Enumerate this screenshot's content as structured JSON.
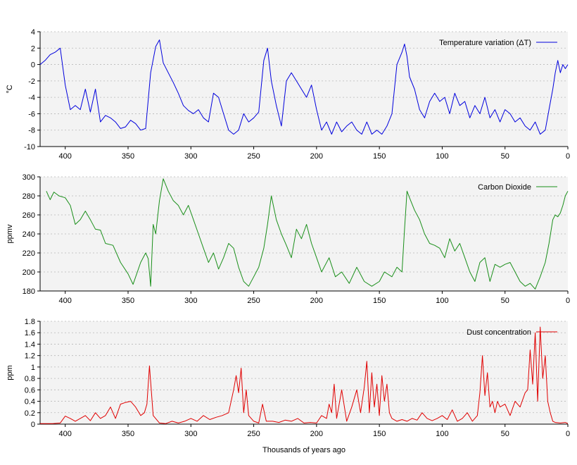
{
  "chart_data": [
    {
      "type": "line",
      "panel": "temperature",
      "ylabel": "°C",
      "xlabel": "",
      "xlim": [
        420,
        0
      ],
      "ylim": [
        -10,
        4
      ],
      "yticks": [
        4,
        2,
        0,
        -2,
        -4,
        -6,
        -8,
        -10
      ],
      "xticks": [
        400,
        350,
        300,
        250,
        200,
        150,
        100,
        50,
        0
      ],
      "grid": true,
      "legend_position": "top-right",
      "series": [
        {
          "name": "Temperature variation (ΔT)",
          "color": "#0000dd",
          "x": [
            420,
            416,
            412,
            408,
            404,
            400,
            396,
            392,
            388,
            384,
            380,
            376,
            372,
            368,
            364,
            360,
            356,
            352,
            348,
            344,
            340,
            336,
            332,
            328,
            325,
            322,
            318,
            314,
            310,
            306,
            302,
            298,
            294,
            290,
            286,
            282,
            278,
            274,
            270,
            266,
            262,
            258,
            254,
            250,
            246,
            242,
            239,
            236,
            232,
            228,
            224,
            220,
            216,
            212,
            208,
            204,
            200,
            196,
            192,
            188,
            184,
            180,
            176,
            172,
            168,
            164,
            160,
            156,
            152,
            148,
            144,
            140,
            136,
            132,
            130,
            128,
            126,
            122,
            118,
            114,
            110,
            106,
            102,
            98,
            94,
            90,
            86,
            82,
            78,
            74,
            70,
            66,
            62,
            58,
            54,
            50,
            46,
            42,
            38,
            34,
            30,
            26,
            22,
            18,
            15,
            12,
            10,
            8,
            6,
            4,
            2,
            0
          ],
          "y": [
            0,
            0.5,
            1.2,
            1.5,
            2.0,
            -2.5,
            -5.5,
            -5.0,
            -5.5,
            -3.0,
            -5.8,
            -3.0,
            -7.0,
            -6.2,
            -6.5,
            -7.0,
            -7.8,
            -7.6,
            -6.8,
            -7.2,
            -8.0,
            -7.8,
            -1.0,
            2.2,
            3.0,
            0.2,
            -1.0,
            -2.2,
            -3.5,
            -5.0,
            -5.6,
            -6.0,
            -5.5,
            -6.5,
            -7.0,
            -3.5,
            -4.0,
            -6.0,
            -8.0,
            -8.5,
            -8.0,
            -6.0,
            -7.0,
            -6.5,
            -5.8,
            0.5,
            2.0,
            -2.0,
            -5.0,
            -7.5,
            -2.0,
            -1.0,
            -2.0,
            -3.0,
            -4.0,
            -2.5,
            -5.5,
            -8.0,
            -7.0,
            -8.5,
            -7.0,
            -8.2,
            -7.5,
            -7.0,
            -8.0,
            -8.5,
            -7.0,
            -8.5,
            -8.0,
            -8.5,
            -7.5,
            -6.0,
            0.0,
            1.5,
            2.5,
            1.0,
            -1.5,
            -3.0,
            -5.5,
            -6.5,
            -4.5,
            -3.5,
            -4.5,
            -4.0,
            -6.0,
            -3.5,
            -5.0,
            -4.5,
            -6.5,
            -5.0,
            -6.0,
            -4.0,
            -6.5,
            -5.5,
            -7.0,
            -5.5,
            -6.0,
            -7.0,
            -6.5,
            -7.5,
            -8.0,
            -7.0,
            -8.5,
            -8.0,
            -5.5,
            -3.0,
            -1.0,
            0.5,
            -1.0,
            0.0,
            -0.5,
            0.0
          ]
        }
      ]
    },
    {
      "type": "line",
      "panel": "co2",
      "ylabel": "ppmv",
      "xlabel": "",
      "xlim": [
        420,
        0
      ],
      "ylim": [
        180,
        300
      ],
      "yticks": [
        300,
        280,
        260,
        240,
        220,
        200,
        180
      ],
      "xticks": [
        400,
        350,
        300,
        250,
        200,
        150,
        100,
        50,
        0
      ],
      "grid": true,
      "legend_position": "top-right",
      "series": [
        {
          "name": "Carbon Dioxide",
          "color": "#1a8f1a",
          "x": [
            415,
            412,
            409,
            405,
            400,
            396,
            392,
            388,
            384,
            380,
            376,
            372,
            368,
            362,
            356,
            350,
            346,
            340,
            336,
            334,
            332,
            330,
            328,
            325,
            322,
            318,
            314,
            310,
            306,
            302,
            298,
            294,
            290,
            286,
            282,
            278,
            274,
            270,
            266,
            262,
            258,
            254,
            250,
            246,
            242,
            239,
            236,
            232,
            228,
            224,
            220,
            216,
            212,
            208,
            204,
            200,
            196,
            190,
            185,
            180,
            174,
            168,
            162,
            156,
            150,
            146,
            140,
            136,
            132,
            130,
            128,
            126,
            122,
            118,
            114,
            110,
            106,
            102,
            98,
            94,
            90,
            86,
            82,
            78,
            74,
            70,
            66,
            62,
            58,
            54,
            50,
            46,
            42,
            38,
            34,
            30,
            26,
            22,
            18,
            15,
            12,
            10,
            8,
            6,
            4,
            2,
            0
          ],
          "y": [
            285,
            276,
            284,
            280,
            278,
            270,
            250,
            255,
            264,
            255,
            245,
            244,
            230,
            228,
            210,
            198,
            187,
            210,
            220,
            214,
            185,
            250,
            240,
            275,
            298,
            285,
            275,
            270,
            260,
            270,
            255,
            240,
            225,
            210,
            220,
            203,
            215,
            230,
            225,
            205,
            190,
            185,
            195,
            205,
            225,
            250,
            280,
            255,
            240,
            228,
            215,
            245,
            235,
            250,
            230,
            215,
            200,
            215,
            195,
            200,
            188,
            205,
            190,
            185,
            190,
            200,
            195,
            205,
            200,
            245,
            285,
            278,
            265,
            255,
            240,
            230,
            228,
            225,
            215,
            235,
            222,
            230,
            215,
            200,
            190,
            210,
            215,
            190,
            208,
            205,
            208,
            210,
            200,
            190,
            185,
            188,
            182,
            195,
            210,
            230,
            255,
            260,
            258,
            262,
            270,
            280,
            285
          ]
        }
      ]
    },
    {
      "type": "line",
      "panel": "dust",
      "ylabel": "ppm",
      "xlabel": "Thousands of years ago",
      "xlim": [
        420,
        0
      ],
      "ylim": [
        0,
        1.8
      ],
      "yticks": [
        1.8,
        1.6,
        1.4,
        1.2,
        1,
        0.8,
        0.6,
        0.4,
        0.2,
        0
      ],
      "xticks": [
        400,
        350,
        300,
        250,
        200,
        150,
        100,
        50,
        0
      ],
      "grid": true,
      "legend_position": "top-right",
      "series": [
        {
          "name": "Dust concentration",
          "color": "#e00000",
          "x": [
            420,
            410,
            404,
            400,
            396,
            392,
            388,
            384,
            380,
            376,
            372,
            368,
            364,
            360,
            356,
            352,
            348,
            344,
            340,
            337,
            335,
            333,
            330,
            325,
            320,
            315,
            310,
            305,
            300,
            295,
            290,
            285,
            280,
            275,
            270,
            266,
            264,
            262,
            260,
            258,
            256,
            254,
            250,
            246,
            243,
            240,
            235,
            230,
            225,
            220,
            215,
            210,
            205,
            200,
            196,
            192,
            190,
            188,
            186,
            184,
            180,
            176,
            172,
            168,
            165,
            162,
            160,
            158,
            156,
            154,
            152,
            150,
            148,
            146,
            144,
            142,
            140,
            136,
            132,
            128,
            124,
            120,
            116,
            112,
            108,
            104,
            100,
            96,
            92,
            88,
            84,
            80,
            76,
            72,
            70,
            68,
            66,
            64,
            62,
            60,
            58,
            56,
            54,
            50,
            46,
            42,
            38,
            34,
            32,
            30,
            28,
            26,
            24,
            22,
            20,
            18,
            16,
            14,
            12,
            10,
            6,
            2,
            0
          ],
          "y": [
            0.01,
            0.01,
            0.02,
            0.14,
            0.1,
            0.05,
            0.1,
            0.15,
            0.06,
            0.2,
            0.1,
            0.15,
            0.3,
            0.1,
            0.35,
            0.38,
            0.4,
            0.3,
            0.15,
            0.2,
            0.35,
            1.02,
            0.15,
            0.02,
            0.01,
            0.05,
            0.02,
            0.05,
            0.1,
            0.05,
            0.15,
            0.08,
            0.12,
            0.15,
            0.2,
            0.6,
            0.85,
            0.55,
            0.98,
            0.2,
            0.6,
            0.15,
            0.05,
            0.02,
            0.35,
            0.05,
            0.05,
            0.03,
            0.07,
            0.05,
            0.1,
            0.02,
            0.03,
            0.02,
            0.15,
            0.1,
            0.35,
            0.2,
            0.7,
            0.1,
            0.6,
            0.05,
            0.3,
            0.6,
            0.2,
            0.65,
            1.1,
            0.2,
            0.9,
            0.3,
            0.7,
            0.15,
            0.85,
            0.4,
            0.7,
            0.2,
            0.1,
            0.05,
            0.08,
            0.05,
            0.1,
            0.07,
            0.2,
            0.1,
            0.06,
            0.1,
            0.15,
            0.08,
            0.25,
            0.05,
            0.1,
            0.2,
            0.05,
            0.15,
            0.55,
            1.2,
            0.5,
            0.9,
            0.3,
            0.4,
            0.2,
            0.4,
            0.3,
            0.35,
            0.15,
            0.4,
            0.3,
            0.55,
            0.6,
            1.3,
            0.7,
            1.6,
            0.4,
            1.7,
            0.8,
            1.2,
            0.4,
            0.2,
            0.05,
            0.03,
            0.02,
            0.03,
            0.01
          ]
        }
      ]
    }
  ]
}
